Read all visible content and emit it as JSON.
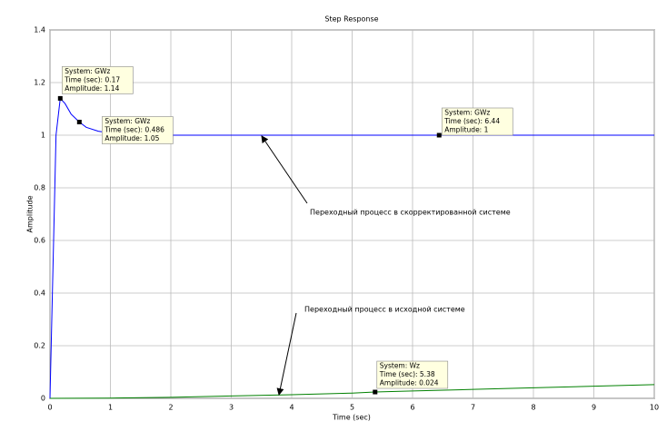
{
  "chart_data": {
    "type": "line",
    "title": "Step Response",
    "xlabel": "Time (sec)",
    "ylabel": "Amplitude",
    "xlim": [
      0,
      10
    ],
    "xticks": [
      0,
      1,
      2,
      3,
      4,
      5,
      6,
      7,
      8,
      9,
      10
    ],
    "ylim": [
      0,
      1.4
    ],
    "yticks": [
      0,
      0.2,
      0.4,
      0.6,
      0.8,
      1,
      1.2,
      1.4
    ],
    "grid": true,
    "series": [
      {
        "name": "GWz",
        "color": "#0000ff",
        "x": [
          0,
          0.05,
          0.1,
          0.17,
          0.25,
          0.35,
          0.486,
          0.6,
          0.8,
          1.0,
          1.3,
          1.6,
          2,
          3,
          4,
          5,
          6,
          6.44,
          7,
          8,
          9,
          10
        ],
        "values": [
          0,
          0.5,
          1.0,
          1.14,
          1.12,
          1.08,
          1.05,
          1.03,
          1.015,
          1.008,
          1.003,
          1.001,
          1,
          1,
          1,
          1,
          1,
          1,
          1,
          1,
          1,
          1
        ]
      },
      {
        "name": "Wz",
        "color": "#008000",
        "x": [
          0,
          1,
          2,
          3,
          4,
          5,
          5.38,
          6,
          7,
          8,
          9,
          10
        ],
        "values": [
          0,
          0.001,
          0.004,
          0.009,
          0.014,
          0.02,
          0.024,
          0.028,
          0.034,
          0.04,
          0.046,
          0.052
        ]
      }
    ],
    "datatips": [
      {
        "x": 0.17,
        "y": 1.14,
        "lines": [
          "System: GWz",
          "Time (sec): 0.17",
          "Amplitude: 1.14"
        ]
      },
      {
        "x": 0.486,
        "y": 1.05,
        "lines": [
          "System: GWz",
          "Time (sec): 0.486",
          "Amplitude: 1.05"
        ]
      },
      {
        "x": 6.44,
        "y": 1,
        "lines": [
          "System: GWz",
          "Time (sec): 6.44",
          "Amplitude: 1"
        ]
      },
      {
        "x": 5.38,
        "y": 0.024,
        "lines": [
          "System: Wz",
          "Time (sec): 5.38",
          "Amplitude: 0.024"
        ]
      }
    ],
    "annotations": [
      "Переходный процесс в скорректированной системе",
      "Переходный процесс в исходной системе"
    ]
  }
}
